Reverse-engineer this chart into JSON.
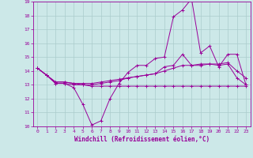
{
  "title": "",
  "xlabel": "Windchill (Refroidissement éolien,°C)",
  "ylabel": "",
  "bg_color": "#cce8e8",
  "grid_color": "#aacccc",
  "line_color": "#990099",
  "xlim": [
    -0.5,
    23.5
  ],
  "ylim": [
    10,
    19
  ],
  "xticks": [
    0,
    1,
    2,
    3,
    4,
    5,
    6,
    7,
    8,
    9,
    10,
    11,
    12,
    13,
    14,
    15,
    16,
    17,
    18,
    19,
    20,
    21,
    22,
    23
  ],
  "yticks": [
    10,
    11,
    12,
    13,
    14,
    15,
    16,
    17,
    18,
    19
  ],
  "series": [
    {
      "x": [
        0,
        1,
        2,
        3,
        4,
        5,
        6,
        7,
        8,
        9,
        10,
        11,
        12,
        13,
        14,
        15,
        16,
        17,
        18,
        19,
        20,
        21,
        22,
        23
      ],
      "y": [
        14.2,
        13.7,
        13.1,
        13.1,
        12.8,
        11.6,
        10.1,
        10.4,
        12.0,
        13.1,
        13.9,
        14.4,
        14.4,
        14.9,
        15.0,
        17.9,
        18.4,
        19.2,
        15.3,
        15.8,
        14.3,
        15.2,
        15.2,
        13.0
      ]
    },
    {
      "x": [
        0,
        1,
        2,
        3,
        4,
        5,
        6,
        7,
        8,
        9,
        10,
        11,
        12,
        13,
        14,
        15,
        16,
        17,
        18,
        19,
        20,
        21,
        22,
        23
      ],
      "y": [
        14.2,
        13.7,
        13.1,
        13.1,
        13.0,
        13.0,
        12.9,
        12.9,
        12.9,
        12.9,
        12.9,
        12.9,
        12.9,
        12.9,
        12.9,
        12.9,
        12.9,
        12.9,
        12.9,
        12.9,
        12.9,
        12.9,
        12.9,
        12.9
      ]
    },
    {
      "x": [
        0,
        1,
        2,
        3,
        4,
        5,
        6,
        7,
        8,
        9,
        10,
        11,
        12,
        13,
        14,
        15,
        16,
        17,
        18,
        19,
        20,
        21,
        22,
        23
      ],
      "y": [
        14.2,
        13.7,
        13.2,
        13.2,
        13.1,
        13.1,
        13.1,
        13.2,
        13.3,
        13.4,
        13.5,
        13.6,
        13.7,
        13.8,
        14.0,
        14.2,
        14.4,
        14.4,
        14.5,
        14.5,
        14.5,
        14.6,
        14.0,
        13.5
      ]
    },
    {
      "x": [
        0,
        1,
        2,
        3,
        4,
        5,
        6,
        7,
        8,
        9,
        10,
        11,
        12,
        13,
        14,
        15,
        16,
        17,
        18,
        19,
        20,
        21,
        22,
        23
      ],
      "y": [
        14.2,
        13.7,
        13.2,
        13.2,
        13.1,
        13.0,
        13.0,
        13.1,
        13.2,
        13.3,
        13.5,
        13.6,
        13.7,
        13.8,
        14.3,
        14.4,
        15.2,
        14.4,
        14.4,
        14.5,
        14.4,
        14.5,
        13.5,
        13.0
      ]
    }
  ]
}
